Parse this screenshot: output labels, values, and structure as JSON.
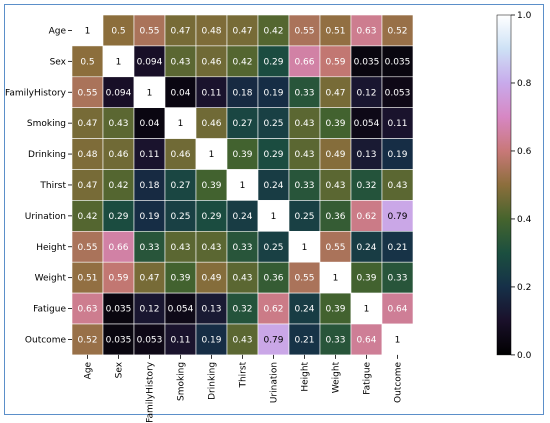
{
  "chart_data": {
    "type": "heatmap",
    "labels": [
      "Age",
      "Sex",
      "FamilyHistory",
      "Smoking",
      "Drinking",
      "Thirst",
      "Urination",
      "Height",
      "Weight",
      "Fatigue",
      "Outcome"
    ],
    "matrix": [
      [
        1,
        0.5,
        0.55,
        0.47,
        0.48,
        0.47,
        0.42,
        0.55,
        0.51,
        0.63,
        0.52
      ],
      [
        0.5,
        1,
        0.094,
        0.43,
        0.46,
        0.42,
        0.29,
        0.66,
        0.59,
        0.035,
        0.035
      ],
      [
        0.55,
        0.094,
        1,
        0.04,
        0.11,
        0.18,
        0.19,
        0.33,
        0.47,
        0.12,
        0.053
      ],
      [
        0.47,
        0.43,
        0.04,
        1,
        0.46,
        0.27,
        0.25,
        0.43,
        0.39,
        0.054,
        0.11
      ],
      [
        0.48,
        0.46,
        0.11,
        0.46,
        1,
        0.39,
        0.29,
        0.43,
        0.49,
        0.13,
        0.19
      ],
      [
        0.47,
        0.42,
        0.18,
        0.27,
        0.39,
        1,
        0.24,
        0.33,
        0.43,
        0.32,
        0.43
      ],
      [
        0.42,
        0.29,
        0.19,
        0.25,
        0.29,
        0.24,
        1,
        0.25,
        0.36,
        0.62,
        0.79
      ],
      [
        0.55,
        0.66,
        0.33,
        0.43,
        0.43,
        0.33,
        0.25,
        1,
        0.55,
        0.24,
        0.21
      ],
      [
        0.51,
        0.59,
        0.47,
        0.39,
        0.49,
        0.43,
        0.36,
        0.55,
        1,
        0.39,
        0.33
      ],
      [
        0.63,
        0.035,
        0.12,
        0.054,
        0.13,
        0.32,
        0.62,
        0.24,
        0.39,
        1,
        0.64
      ],
      [
        0.52,
        0.035,
        0.053,
        0.11,
        0.19,
        0.43,
        0.79,
        0.21,
        0.33,
        0.64,
        1
      ]
    ],
    "colormap": "cubehelix",
    "vmin": 0,
    "vmax": 1,
    "colorbar_ticks": [
      "0.0",
      "0.2",
      "0.4",
      "0.6",
      "0.8",
      "1.0"
    ],
    "frame_color": "#5b8fc9"
  }
}
